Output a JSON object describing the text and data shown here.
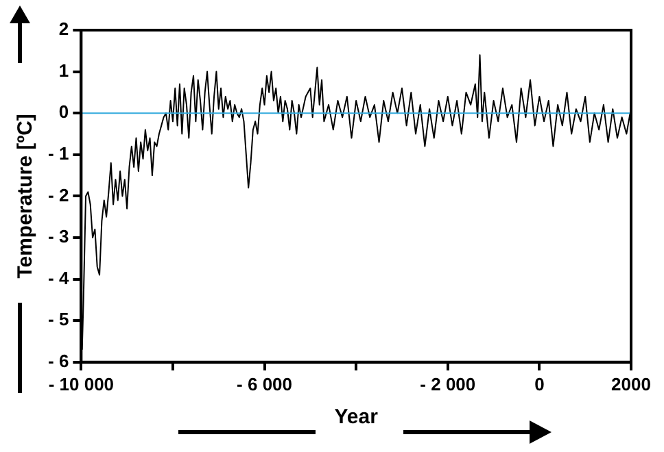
{
  "chart_data": {
    "type": "line",
    "xlabel": "Year",
    "ylabel": "Temperature [ºC]",
    "xlim": [
      -10000,
      2000
    ],
    "xticks": [
      {
        "value": -10000,
        "label": "- 10 000"
      },
      {
        "value": -8000,
        "label": null
      },
      {
        "value": -6000,
        "label": "- 6 000"
      },
      {
        "value": -4000,
        "label": null
      },
      {
        "value": -2000,
        "label": "- 2 000"
      },
      0,
      2000
    ],
    "ylim": [
      -6,
      2
    ],
    "yticks": [
      {
        "value": -6,
        "label": "- 6"
      },
      {
        "value": -5,
        "label": "- 5"
      },
      {
        "value": -4,
        "label": "- 4"
      },
      {
        "value": -3,
        "label": "- 3"
      },
      {
        "value": -2,
        "label": "- 2"
      },
      {
        "value": -1,
        "label": "- 1"
      },
      0,
      1,
      2
    ],
    "grid": false,
    "legend": false,
    "marker": "none",
    "line_style": "solid",
    "ref_lines": [
      {
        "axis": "y",
        "value": 0,
        "color": "#33aadd"
      }
    ],
    "series": [
      {
        "color": "#000000",
        "x": [
          -9980,
          -9950,
          -9900,
          -9850,
          -9800,
          -9750,
          -9700,
          -9650,
          -9600,
          -9550,
          -9500,
          -9450,
          -9400,
          -9350,
          -9300,
          -9250,
          -9200,
          -9150,
          -9100,
          -9050,
          -9000,
          -8950,
          -8900,
          -8850,
          -8800,
          -8750,
          -8700,
          -8650,
          -8600,
          -8550,
          -8500,
          -8450,
          -8400,
          -8350,
          -8300,
          -8250,
          -8200,
          -8150,
          -8100,
          -8050,
          -8000,
          -7950,
          -7900,
          -7850,
          -7800,
          -7750,
          -7700,
          -7650,
          -7600,
          -7550,
          -7500,
          -7450,
          -7400,
          -7350,
          -7300,
          -7250,
          -7200,
          -7150,
          -7100,
          -7050,
          -7000,
          -6950,
          -6900,
          -6850,
          -6800,
          -6750,
          -6700,
          -6650,
          -6600,
          -6550,
          -6500,
          -6450,
          -6400,
          -6350,
          -6300,
          -6250,
          -6200,
          -6150,
          -6100,
          -6050,
          -6000,
          -5950,
          -5900,
          -5850,
          -5800,
          -5750,
          -5700,
          -5650,
          -5600,
          -5550,
          -5500,
          -5450,
          -5400,
          -5350,
          -5300,
          -5250,
          -5200,
          -5100,
          -5000,
          -4950,
          -4850,
          -4800,
          -4750,
          -4700,
          -4600,
          -4500,
          -4400,
          -4300,
          -4200,
          -4100,
          -4000,
          -3900,
          -3800,
          -3700,
          -3600,
          -3500,
          -3400,
          -3300,
          -3200,
          -3100,
          -3000,
          -2900,
          -2800,
          -2700,
          -2600,
          -2500,
          -2400,
          -2300,
          -2200,
          -2100,
          -2000,
          -1900,
          -1800,
          -1700,
          -1600,
          -1500,
          -1400,
          -1350,
          -1300,
          -1250,
          -1200,
          -1100,
          -1000,
          -900,
          -800,
          -700,
          -600,
          -500,
          -400,
          -300,
          -200,
          -100,
          0,
          100,
          200,
          300,
          400,
          500,
          600,
          700,
          800,
          900,
          1000,
          1100,
          1200,
          1300,
          1400,
          1500,
          1600,
          1700,
          1800,
          1900,
          1980
        ],
        "values": [
          -5.7,
          -4.5,
          -2.0,
          -1.9,
          -2.2,
          -3.0,
          -2.8,
          -3.7,
          -3.9,
          -2.6,
          -2.1,
          -2.5,
          -1.9,
          -1.2,
          -2.2,
          -1.6,
          -2.1,
          -1.4,
          -2.0,
          -1.6,
          -2.3,
          -1.3,
          -0.8,
          -1.3,
          -0.6,
          -1.4,
          -0.7,
          -1.1,
          -0.4,
          -0.9,
          -0.6,
          -1.5,
          -0.7,
          -0.8,
          -0.5,
          -0.3,
          -0.1,
          0.0,
          -0.4,
          0.3,
          -0.2,
          0.6,
          -0.3,
          0.7,
          -0.5,
          0.6,
          0.2,
          -0.6,
          0.5,
          0.9,
          -0.2,
          0.8,
          0.3,
          -0.4,
          0.5,
          1.0,
          0.2,
          -0.5,
          0.4,
          1.0,
          0.1,
          0.6,
          -0.1,
          0.4,
          0.1,
          0.3,
          -0.2,
          0.2,
          0.0,
          -0.1,
          0.1,
          -0.2,
          -1.0,
          -1.8,
          -1.2,
          -0.4,
          -0.2,
          -0.5,
          0.2,
          0.6,
          0.2,
          0.9,
          0.5,
          1.0,
          0.3,
          0.6,
          0.0,
          0.4,
          -0.2,
          0.3,
          0.1,
          -0.4,
          0.3,
          0.0,
          -0.5,
          0.2,
          -0.1,
          0.4,
          0.6,
          -0.1,
          1.1,
          0.2,
          0.8,
          -0.2,
          0.2,
          -0.4,
          0.3,
          -0.1,
          0.4,
          -0.6,
          0.3,
          -0.2,
          0.4,
          -0.1,
          0.2,
          -0.7,
          0.3,
          -0.2,
          0.5,
          0.0,
          0.6,
          -0.3,
          0.5,
          -0.5,
          0.2,
          -0.8,
          0.1,
          -0.6,
          0.3,
          -0.2,
          0.4,
          -0.3,
          0.3,
          -0.5,
          0.5,
          0.2,
          0.7,
          -0.1,
          1.4,
          -0.2,
          0.5,
          -0.6,
          0.3,
          -0.2,
          0.6,
          -0.1,
          0.2,
          -0.7,
          0.6,
          -0.1,
          0.8,
          -0.3,
          0.4,
          -0.2,
          0.3,
          -0.8,
          0.2,
          -0.3,
          0.5,
          -0.5,
          0.1,
          -0.2,
          0.4,
          -0.7,
          0.0,
          -0.4,
          0.2,
          -0.7,
          0.1,
          -0.6,
          -0.1,
          -0.5,
          0.0
        ]
      }
    ]
  }
}
